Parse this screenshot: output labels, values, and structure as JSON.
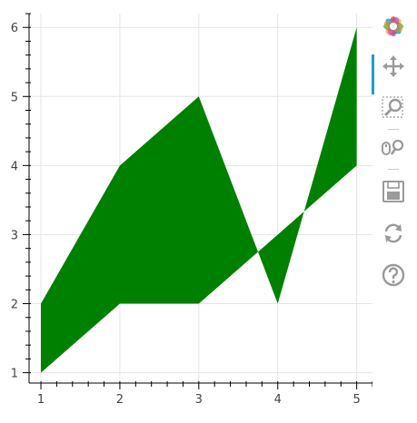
{
  "chart_data": {
    "type": "area",
    "x": [
      1,
      2,
      3,
      4,
      5
    ],
    "y_lower": [
      1,
      2,
      2,
      3,
      4
    ],
    "y_upper": [
      2,
      4,
      5,
      2,
      6
    ],
    "xlim": [
      0.85,
      5.2
    ],
    "ylim": [
      0.85,
      6.2
    ],
    "x_ticks": [
      1,
      2,
      3,
      4,
      5
    ],
    "y_ticks": [
      1,
      2,
      3,
      4,
      5,
      6
    ],
    "x_minor_per_major": 5,
    "y_minor_per_major": 5,
    "grid": true,
    "fill_color": "#008000",
    "grid_color": "#e5e5e5",
    "axis_color": "#000000",
    "title": "",
    "xlabel": "",
    "ylabel": ""
  },
  "toolbar": {
    "active_color": "#1f9bd1",
    "icon_color": "#9a9a9a",
    "tools": [
      {
        "icon": "bokeh-logo-icon",
        "active": false
      },
      {
        "icon": "pan-icon",
        "active": true
      },
      {
        "icon": "box-zoom-icon",
        "active": false
      },
      {
        "icon": "wheel-zoom-icon",
        "active": false
      },
      {
        "icon": "save-icon",
        "active": false
      },
      {
        "icon": "reset-icon",
        "active": false
      },
      {
        "icon": "help-icon",
        "active": false
      }
    ]
  }
}
